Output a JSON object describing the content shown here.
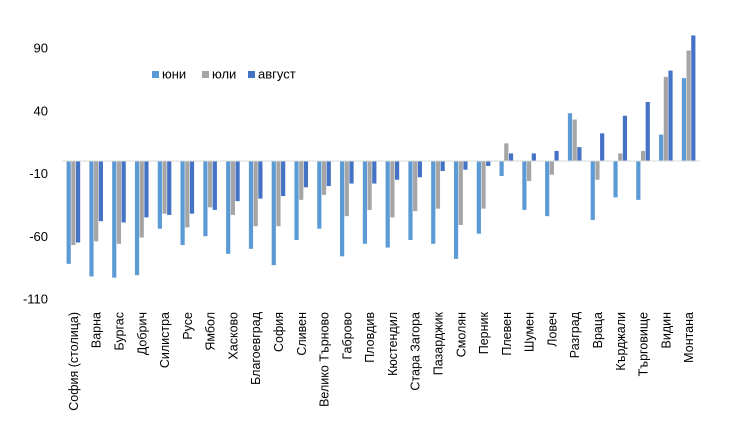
{
  "chart_data": {
    "type": "bar",
    "title": "",
    "xlabel": "",
    "ylabel": "",
    "ylim": [
      -110,
      100
    ],
    "yticks": [
      90,
      40,
      -10,
      -60,
      -110
    ],
    "grid": false,
    "legend_position": "top-left",
    "categories": [
      "София (столица)",
      "Варна",
      "Бургас",
      "Добрич",
      "Силистра",
      "Русе",
      "Ямбол",
      "Хасково",
      "Благоевград",
      "София",
      "Сливен",
      "Велико Търново",
      "Габрово",
      "Пловдив",
      "Кюстендил",
      "Стара Загора",
      "Пазарджик",
      "Смолян",
      "Перник",
      "Плевен",
      "Шумен",
      "Ловеч",
      "Разград",
      "Враца",
      "Кърджали",
      "Търговище",
      "Видин",
      "Монтана"
    ],
    "series": [
      {
        "name": "юни",
        "color": "#5b9bd5",
        "values": [
          -82,
          -92,
          -93,
          -91,
          -54,
          -67,
          -60,
          -74,
          -70,
          -83,
          -63,
          -54,
          -76,
          -66,
          -69,
          -63,
          -66,
          -78,
          -58,
          -12,
          -39,
          -44,
          38,
          -47,
          -29,
          -31,
          21,
          66
        ]
      },
      {
        "name": "юли",
        "color": "#a5a5a5",
        "values": [
          -67,
          -64,
          -66,
          -61,
          -42,
          -53,
          -37,
          -43,
          -52,
          -52,
          -31,
          -27,
          -44,
          -39,
          -45,
          -40,
          -38,
          -51,
          -38,
          14,
          -16,
          -11,
          33,
          -15,
          6,
          8,
          67,
          88
        ]
      },
      {
        "name": "август",
        "color": "#4472c4",
        "values": [
          -65,
          -48,
          -49,
          -45,
          -43,
          -42,
          -39,
          -32,
          -30,
          -28,
          -21,
          -20,
          -18,
          -18,
          -15,
          -13,
          -8,
          -7,
          -4,
          6,
          6,
          8,
          11,
          22,
          36,
          47,
          72,
          100
        ]
      }
    ]
  }
}
